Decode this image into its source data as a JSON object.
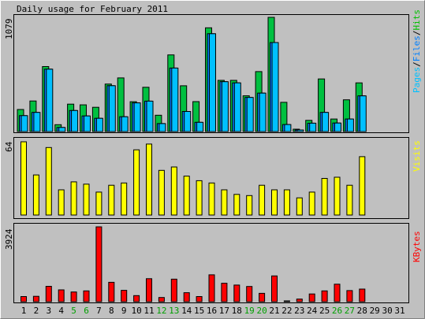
{
  "chart_data": [
    {
      "type": "bar",
      "title": "Daily usage for February 2011",
      "ylabel_top": "1079",
      "side_label_parts": [
        {
          "text": "Pages",
          "color": "#00c0ff"
        },
        {
          "text": "/",
          "color": "#000000"
        },
        {
          "text": "Files",
          "color": "#0080ff"
        },
        {
          "text": "/",
          "color": "#000000"
        },
        {
          "text": "Hits",
          "color": "#00c000"
        }
      ],
      "ylim": [
        0,
        1079
      ],
      "categories": [
        "1",
        "2",
        "3",
        "4",
        "5",
        "6",
        "7",
        "8",
        "9",
        "10",
        "11",
        "12",
        "13",
        "14",
        "15",
        "16",
        "17",
        "18",
        "19",
        "20",
        "21",
        "22",
        "23",
        "24",
        "25",
        "26",
        "27",
        "28",
        "29",
        "30",
        "31"
      ],
      "series": [
        {
          "name": "Hits",
          "color": "#00c040",
          "values": [
            208,
            289,
            614,
            65,
            259,
            252,
            229,
            449,
            507,
            282,
            418,
            154,
            724,
            432,
            283,
            980,
            484,
            484,
            338,
            566,
            1079,
            276,
            22,
            106,
            497,
            118,
            300,
            460,
            0,
            0,
            0
          ]
        },
        {
          "name": "Files",
          "color": "#0080ff",
          "values": [
            150,
            181,
            589,
            39,
            199,
            147,
            125,
            433,
            140,
            271,
            287,
            75,
            600,
            190,
            87,
            924,
            471,
            460,
            322,
            363,
            841,
            66,
            15,
            79,
            181,
            80,
            118,
            337,
            0,
            0,
            0
          ]
        },
        {
          "name": "Pages",
          "color": "#00c0ff",
          "values": [
            150,
            181,
            589,
            39,
            199,
            147,
            125,
            433,
            140,
            271,
            287,
            75,
            600,
            190,
            87,
            924,
            471,
            460,
            322,
            363,
            841,
            66,
            15,
            79,
            181,
            80,
            118,
            337,
            0,
            0,
            0
          ]
        }
      ]
    },
    {
      "type": "bar",
      "ylabel_top": "64",
      "side_label": "Visits",
      "side_label_color": "#ffff00",
      "ylim": [
        0,
        64
      ],
      "categories": [
        "1",
        "2",
        "3",
        "4",
        "5",
        "6",
        "7",
        "8",
        "9",
        "10",
        "11",
        "12",
        "13",
        "14",
        "15",
        "16",
        "17",
        "18",
        "19",
        "20",
        "21",
        "22",
        "23",
        "24",
        "25",
        "26",
        "27",
        "28",
        "29",
        "30",
        "31"
      ],
      "series": [
        {
          "name": "Visits",
          "color": "#ffff00",
          "values": [
            64,
            35,
            59,
            22,
            29,
            27,
            20,
            26,
            28,
            57,
            62,
            39,
            42,
            34,
            30,
            28,
            22,
            18,
            17,
            26,
            22,
            22,
            15,
            20,
            32,
            33,
            26,
            51,
            0,
            0,
            0
          ]
        }
      ]
    },
    {
      "type": "bar",
      "ylabel_top": "3924",
      "side_label": "KBytes",
      "side_label_color": "#ff0000",
      "ylim": [
        0,
        3924
      ],
      "categories": [
        "1",
        "2",
        "3",
        "4",
        "5",
        "6",
        "7",
        "8",
        "9",
        "10",
        "11",
        "12",
        "13",
        "14",
        "15",
        "16",
        "17",
        "18",
        "19",
        "20",
        "21",
        "22",
        "23",
        "24",
        "25",
        "26",
        "27",
        "28",
        "29",
        "30",
        "31"
      ],
      "series": [
        {
          "name": "KBytes",
          "color": "#ff0000",
          "values": [
            268,
            279,
            804,
            620,
            510,
            566,
            3924,
            1015,
            593,
            318,
            1208,
            219,
            1180,
            472,
            268,
            1408,
            968,
            873,
            796,
            438,
            1349,
            17,
            138,
            405,
            566,
            918,
            582,
            660,
            0,
            0,
            0
          ]
        }
      ]
    }
  ],
  "x_labels": [
    "1",
    "2",
    "3",
    "4",
    "5",
    "6",
    "7",
    "8",
    "9",
    "10",
    "11",
    "12",
    "13",
    "14",
    "15",
    "16",
    "17",
    "18",
    "19",
    "20",
    "21",
    "22",
    "23",
    "24",
    "25",
    "26",
    "27",
    "28",
    "29",
    "30",
    "31"
  ],
  "weekend_days": [
    "5",
    "6",
    "12",
    "13",
    "19",
    "20",
    "26",
    "27"
  ],
  "x_label_color": "#000000",
  "weekend_label_color": "#00a000"
}
